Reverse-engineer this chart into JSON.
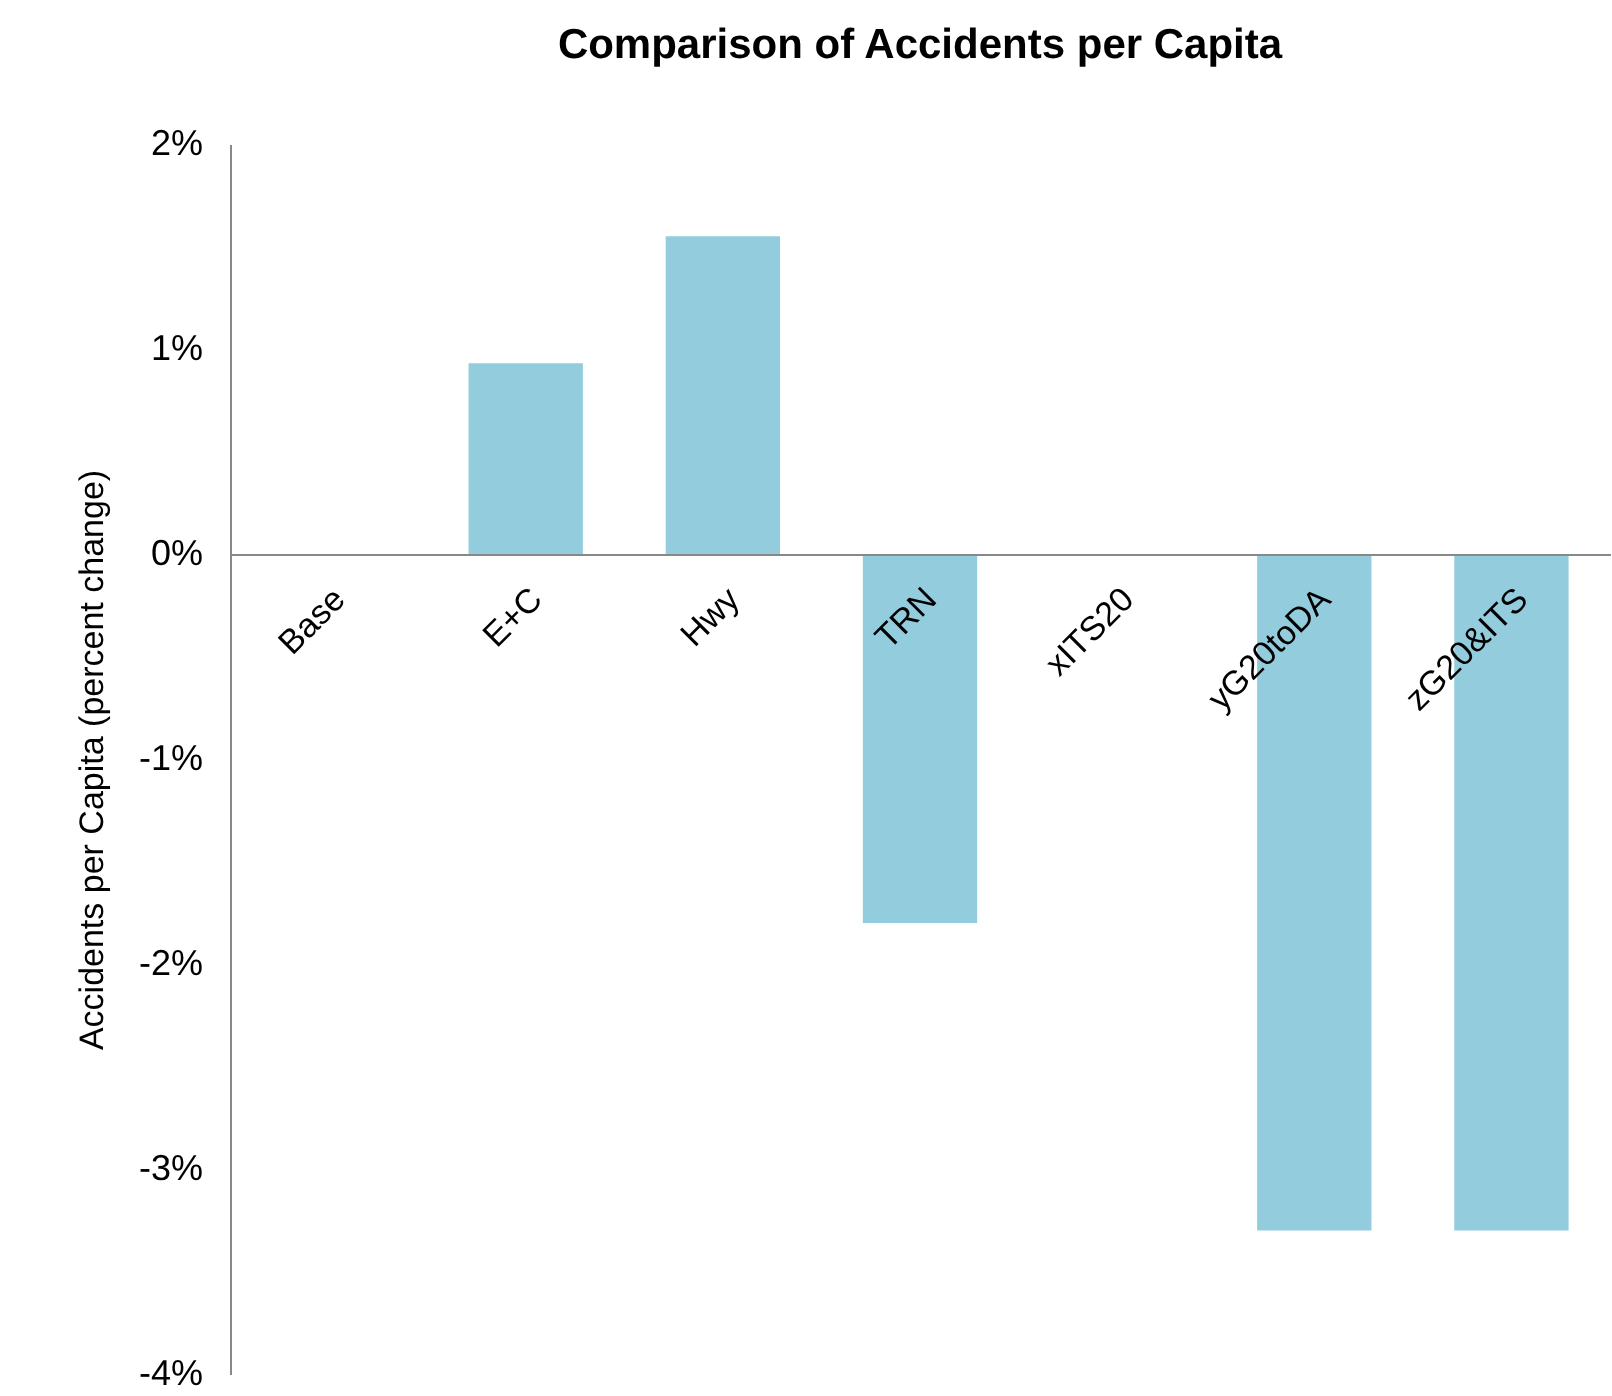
{
  "chart_data": {
    "type": "bar",
    "title": "Comparison of Accidents per Capita",
    "ylabel": "Accidents per Capita (percent change)",
    "categories": [
      "Base",
      "E+C",
      "Hwy",
      "TRN",
      "xITS20",
      "yG20toDA",
      "zG20&ITS"
    ],
    "values": [
      0,
      0.93,
      1.55,
      -1.8,
      0,
      -3.3,
      -3.3
    ],
    "color": "#93cddd",
    "ylim": [
      -4,
      2
    ],
    "yticks": [
      {
        "value": -4,
        "label": "-4%"
      },
      {
        "value": -3,
        "label": "-3%"
      },
      {
        "value": -2,
        "label": "-2%"
      },
      {
        "value": -1,
        "label": "-1%"
      },
      {
        "value": 0,
        "label": "0%"
      },
      {
        "value": 1,
        "label": "1%"
      },
      {
        "value": 2,
        "label": "2%"
      }
    ],
    "grid": false
  }
}
